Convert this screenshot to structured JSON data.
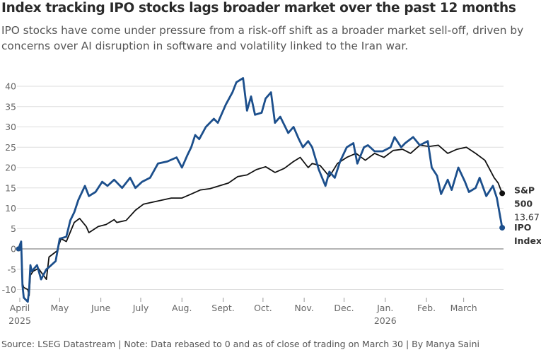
{
  "title": "Index tracking IPO stocks lags broader market over the past 12 months",
  "subtitle": "IPO stocks have come under pressure from a risk-off shift as a broader market sell-off, driven by concerns over AI disruption in software and volatility linked to the Iran war.",
  "source": "Source: LSEG Datastream | Note: Data rebased to 0 and as of close of trading on March 30 | By Manya Saini",
  "colors": {
    "sp500": "#111111",
    "ipo": "#1c4f8c",
    "zero_line": "#888888",
    "grid": "#dddddd",
    "axis_text": "#666666"
  },
  "chart_data": {
    "type": "line",
    "title": "Index tracking IPO stocks lags broader market over the past 12 months",
    "xlabel": "",
    "ylabel": "",
    "ylim": [
      -12,
      44
    ],
    "xlim": [
      "2025-04-01",
      "2026-03-31"
    ],
    "y_ticks": [
      -10,
      -5,
      0,
      5,
      10,
      15,
      20,
      25,
      30,
      35,
      40
    ],
    "x_ticks": [
      {
        "date": "2025-04-01",
        "label": "April",
        "sublabel": "2025"
      },
      {
        "date": "2025-05-01",
        "label": "May",
        "sublabel": ""
      },
      {
        "date": "2025-06-01",
        "label": "June",
        "sublabel": ""
      },
      {
        "date": "2025-07-01",
        "label": "July",
        "sublabel": ""
      },
      {
        "date": "2025-08-01",
        "label": "Aug.",
        "sublabel": ""
      },
      {
        "date": "2025-09-01",
        "label": "Sept.",
        "sublabel": ""
      },
      {
        "date": "2025-10-01",
        "label": "Oct.",
        "sublabel": ""
      },
      {
        "date": "2025-11-01",
        "label": "Nov.",
        "sublabel": ""
      },
      {
        "date": "2025-12-01",
        "label": "Dec.",
        "sublabel": ""
      },
      {
        "date": "2026-01-01",
        "label": "Jan.",
        "sublabel": "2026"
      },
      {
        "date": "2026-02-01",
        "label": "Feb.",
        "sublabel": ""
      },
      {
        "date": "2026-03-01",
        "label": "March",
        "sublabel": ""
      }
    ],
    "grid": true,
    "legend": "direct labels at right end of lines",
    "series": [
      {
        "name": "S&P 500",
        "color": "#111111",
        "end_value": "13.67",
        "x": [
          "2025-03-31",
          "2025-04-02",
          "2025-04-03",
          "2025-04-04",
          "2025-04-07",
          "2025-04-08",
          "2025-04-09",
          "2025-04-11",
          "2025-04-15",
          "2025-04-21",
          "2025-04-23",
          "2025-04-29",
          "2025-05-02",
          "2025-05-06",
          "2025-05-12",
          "2025-05-16",
          "2025-05-21",
          "2025-05-23",
          "2025-05-30",
          "2025-06-05",
          "2025-06-11",
          "2025-06-13",
          "2025-06-20",
          "2025-06-27",
          "2025-07-03",
          "2025-07-10",
          "2025-07-17",
          "2025-07-24",
          "2025-08-01",
          "2025-08-08",
          "2025-08-15",
          "2025-08-22",
          "2025-08-29",
          "2025-09-05",
          "2025-09-12",
          "2025-09-19",
          "2025-09-26",
          "2025-10-03",
          "2025-10-10",
          "2025-10-17",
          "2025-10-24",
          "2025-10-29",
          "2025-11-04",
          "2025-11-07",
          "2025-11-13",
          "2025-11-20",
          "2025-11-26",
          "2025-12-03",
          "2025-12-10",
          "2025-12-17",
          "2025-12-24",
          "2025-12-31",
          "2026-01-07",
          "2026-01-14",
          "2026-01-20",
          "2026-01-27",
          "2026-02-03",
          "2026-02-10",
          "2026-02-17",
          "2026-02-24",
          "2026-03-03",
          "2026-03-10",
          "2026-03-17",
          "2026-03-24",
          "2026-03-27",
          "2026-03-30"
        ],
        "values": [
          0,
          0.8,
          -8.5,
          -9.5,
          -10,
          -11.5,
          -6.5,
          -5.5,
          -4.8,
          -7.5,
          -2,
          -0.5,
          2.5,
          1.8,
          6.5,
          7.5,
          5.5,
          4,
          5.5,
          6,
          7.2,
          6.5,
          7,
          9.5,
          11,
          11.5,
          12,
          12.5,
          12.5,
          13.5,
          14.5,
          14.8,
          15.5,
          16.2,
          17.8,
          18.2,
          19.5,
          20.2,
          18.8,
          19.8,
          21.5,
          22.5,
          20,
          21,
          20.5,
          17.8,
          21,
          22.5,
          23.5,
          21.8,
          23.5,
          22.5,
          24.2,
          24.5,
          23.5,
          25.5,
          25.2,
          25.5,
          23.5,
          24.5,
          25,
          23.5,
          21.8,
          17.5,
          16.2,
          13.67
        ]
      },
      {
        "name": "IPO Index",
        "color": "#1c4f8c",
        "end_value": "",
        "x": [
          "2025-03-31",
          "2025-04-02",
          "2025-04-03",
          "2025-04-04",
          "2025-04-07",
          "2025-04-08",
          "2025-04-09",
          "2025-04-10",
          "2025-04-14",
          "2025-04-17",
          "2025-04-21",
          "2025-04-23",
          "2025-04-28",
          "2025-05-01",
          "2025-05-06",
          "2025-05-09",
          "2025-05-12",
          "2025-05-15",
          "2025-05-20",
          "2025-05-23",
          "2025-05-28",
          "2025-06-02",
          "2025-06-06",
          "2025-06-11",
          "2025-06-17",
          "2025-06-23",
          "2025-06-27",
          "2025-07-02",
          "2025-07-08",
          "2025-07-14",
          "2025-07-21",
          "2025-07-28",
          "2025-08-01",
          "2025-08-05",
          "2025-08-08",
          "2025-08-11",
          "2025-08-14",
          "2025-08-19",
          "2025-08-25",
          "2025-08-28",
          "2025-09-03",
          "2025-09-08",
          "2025-09-11",
          "2025-09-16",
          "2025-09-19",
          "2025-09-22",
          "2025-09-25",
          "2025-09-30",
          "2025-10-03",
          "2025-10-07",
          "2025-10-10",
          "2025-10-14",
          "2025-10-20",
          "2025-10-24",
          "2025-10-28",
          "2025-10-31",
          "2025-11-04",
          "2025-11-07",
          "2025-11-12",
          "2025-11-17",
          "2025-11-20",
          "2025-11-24",
          "2025-11-28",
          "2025-12-03",
          "2025-12-08",
          "2025-12-11",
          "2025-12-16",
          "2025-12-19",
          "2025-12-24",
          "2025-12-30",
          "2026-01-05",
          "2026-01-08",
          "2026-01-13",
          "2026-01-16",
          "2026-01-22",
          "2026-01-27",
          "2026-02-02",
          "2026-02-05",
          "2026-02-09",
          "2026-02-12",
          "2026-02-17",
          "2026-02-20",
          "2026-02-25",
          "2026-03-02",
          "2026-03-05",
          "2026-03-10",
          "2026-03-13",
          "2026-03-18",
          "2026-03-23",
          "2026-03-26",
          "2026-03-30"
        ],
        "values": [
          0,
          1.8,
          -9,
          -12,
          -13,
          -10,
          -4,
          -5.5,
          -4,
          -7.5,
          -5,
          -4.5,
          -3,
          2.5,
          3,
          7,
          9,
          12,
          15.5,
          13,
          14,
          16.5,
          15.5,
          17,
          15,
          17.5,
          15,
          16.5,
          17.5,
          21,
          21.5,
          22.5,
          20,
          23,
          25,
          28,
          27,
          30,
          32,
          31,
          35.5,
          38.5,
          41,
          42,
          34,
          37.5,
          33,
          33.5,
          37,
          38.5,
          31,
          32.5,
          28.5,
          30,
          27,
          25,
          26.5,
          25,
          19.5,
          15.5,
          19,
          17.5,
          21.5,
          25,
          26,
          21,
          25,
          25.5,
          24,
          24,
          25,
          27.5,
          25,
          26,
          27.5,
          25.5,
          26.5,
          20,
          18,
          13.5,
          17,
          14.5,
          20,
          16.5,
          14,
          15,
          17.5,
          13,
          15.5,
          12.5,
          5.2
        ]
      }
    ]
  }
}
